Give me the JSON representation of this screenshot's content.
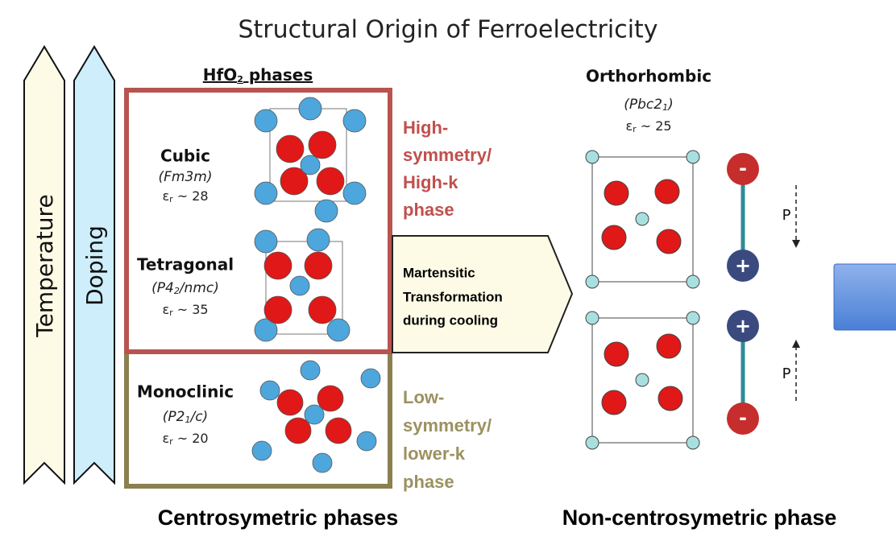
{
  "title": "Structural Origin of Ferroelectricity",
  "arrows": [
    "Temperature",
    "Doping"
  ],
  "hfo2_header": {
    "base": "HfO",
    "sub": "2",
    "rest": " phases"
  },
  "phases": [
    {
      "name": "Cubic",
      "group": [
        "(Fm3m)"
      ],
      "eps": {
        "symbol": "ε",
        "sub": "r",
        "value": " ~ 28"
      }
    },
    {
      "name": "Tetragonal",
      "group": [
        "(P4",
        "2",
        "/nmc)"
      ],
      "eps": {
        "symbol": "ε",
        "sub": "r",
        "value": " ~ 35"
      }
    },
    {
      "name": "Monoclinic",
      "group": [
        "(P2",
        "1",
        "/c)"
      ],
      "eps": {
        "symbol": "ε",
        "sub": "r",
        "value": " ~ 20"
      }
    }
  ],
  "high_label": [
    "High-",
    "symmetry/",
    "High-k",
    "phase"
  ],
  "low_label": [
    "Low-",
    "symmetry/",
    "lower-k",
    "phase"
  ],
  "transformation": [
    "Martensitic",
    "Transformation",
    "during cooling"
  ],
  "orthorhombic": {
    "name": "Orthorhombic",
    "group": [
      "(Pbc2",
      "1",
      ")"
    ],
    "eps": {
      "symbol": "ε",
      "sub": "r",
      "value": " ~ 25"
    }
  },
  "charges": [
    "-",
    "+",
    "+",
    "-"
  ],
  "polarization": [
    "P",
    "P"
  ],
  "bottom": [
    "Centrosymetric phases",
    "Non-centrosymetric phase"
  ]
}
